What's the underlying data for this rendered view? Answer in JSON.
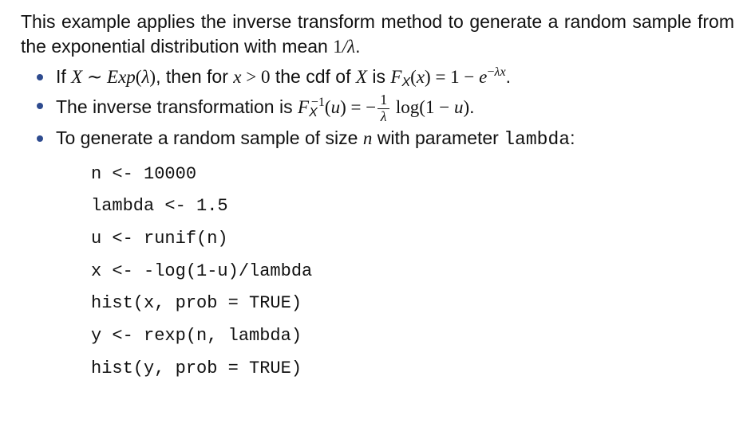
{
  "intro_pre": "This example applies the inverse transform method to generate a random sample from the exponential distribution with mean ",
  "intro_mean_num": "1",
  "intro_mean_over": "/",
  "intro_mean_lambda": "λ",
  "intro_post": ".",
  "b1": {
    "if": "If ",
    "X": "X",
    "sim": " ∼ ",
    "Exp": "Exp",
    "lp": "(",
    "lambda": "λ",
    "rp": ")",
    "then": ", then for ",
    "x": "x",
    "gt0": " > 0",
    "cdf_of": " the cdf of ",
    "X2": "X",
    "is": " is ",
    "F": "F",
    "sub": "X",
    "lp2": "(",
    "xarg": "x",
    "rp2": ")",
    "eq": " = 1 − ",
    "e": "e",
    "exp_neg": "−",
    "exp_l": "λ",
    "exp_x": "x",
    "dot": "."
  },
  "b2": {
    "text": "The inverse transformation is ",
    "F": "F",
    "sub": "X",
    "sup": "−1",
    "lp": "(",
    "u": "u",
    "rp": ")",
    "eq": " = −",
    "frac_num": "1",
    "frac_den": "λ",
    "log": " log(1 − ",
    "u2": "u",
    "rp2": ")",
    "dot": "."
  },
  "b3": {
    "pre": "To generate a random sample of size ",
    "n": "n",
    "mid": " with parameter ",
    "param": "lambda",
    "post": ":"
  },
  "code": {
    "l1": "n <- 10000",
    "l2": "lambda <- 1.5",
    "l3": "u <- runif(n)",
    "l4": "x <- -log(1-u)/lambda",
    "l5": "hist(x, prob = TRUE)",
    "l6": "y <- rexp(n, lambda)",
    "l7": "hist(y, prob = TRUE)"
  }
}
